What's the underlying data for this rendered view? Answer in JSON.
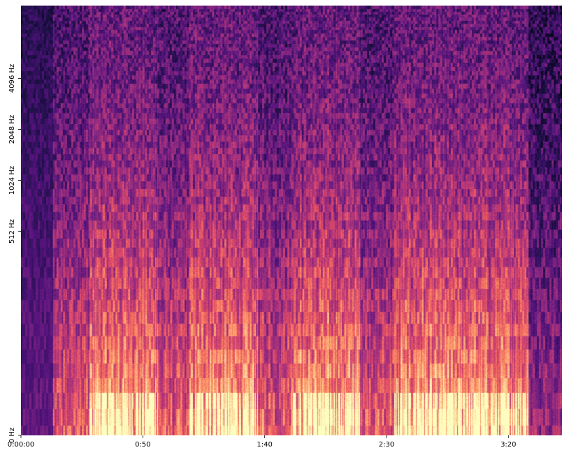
{
  "chart_data": {
    "type": "heatmap",
    "title": "",
    "xlabel": "",
    "ylabel": "",
    "x_axis": {
      "scale": "time",
      "range_seconds": [
        0,
        222
      ],
      "ticks": [
        {
          "value": 0,
          "label": "0:00:00"
        },
        {
          "value": 50,
          "label": "0:50"
        },
        {
          "value": 100,
          "label": "1:40"
        },
        {
          "value": 150,
          "label": "2:30"
        },
        {
          "value": 200,
          "label": "3:20"
        }
      ]
    },
    "y_axis": {
      "scale": "log2",
      "range_hz": [
        0,
        11025
      ],
      "ticks": [
        {
          "value": 0,
          "label": "0 Hz"
        },
        {
          "value": 512,
          "label": "512 Hz"
        },
        {
          "value": 1024,
          "label": "1024 Hz"
        },
        {
          "value": 2048,
          "label": "2048 Hz"
        },
        {
          "value": 4096,
          "label": "4096 Hz"
        }
      ]
    },
    "colormap": "magma",
    "colormap_stops": [
      "#000004",
      "#1d1147",
      "#51127c",
      "#822681",
      "#b63679",
      "#e65164",
      "#fb8861",
      "#fec287",
      "#fcfdbf"
    ],
    "grid": false,
    "legend": "none",
    "segments": [
      {
        "start_s": 0,
        "end_s": 13,
        "energy": "very low"
      },
      {
        "start_s": 13,
        "end_s": 28,
        "energy": "medium"
      },
      {
        "start_s": 28,
        "end_s": 56,
        "energy": "high"
      },
      {
        "start_s": 56,
        "end_s": 69,
        "energy": "medium"
      },
      {
        "start_s": 69,
        "end_s": 97,
        "energy": "high"
      },
      {
        "start_s": 97,
        "end_s": 111,
        "energy": "medium"
      },
      {
        "start_s": 111,
        "end_s": 139,
        "energy": "high"
      },
      {
        "start_s": 139,
        "end_s": 153,
        "energy": "medium"
      },
      {
        "start_s": 153,
        "end_s": 181,
        "energy": "high"
      },
      {
        "start_s": 181,
        "end_s": 208,
        "energy": "high"
      },
      {
        "start_s": 208,
        "end_s": 222,
        "energy": "low"
      }
    ]
  }
}
